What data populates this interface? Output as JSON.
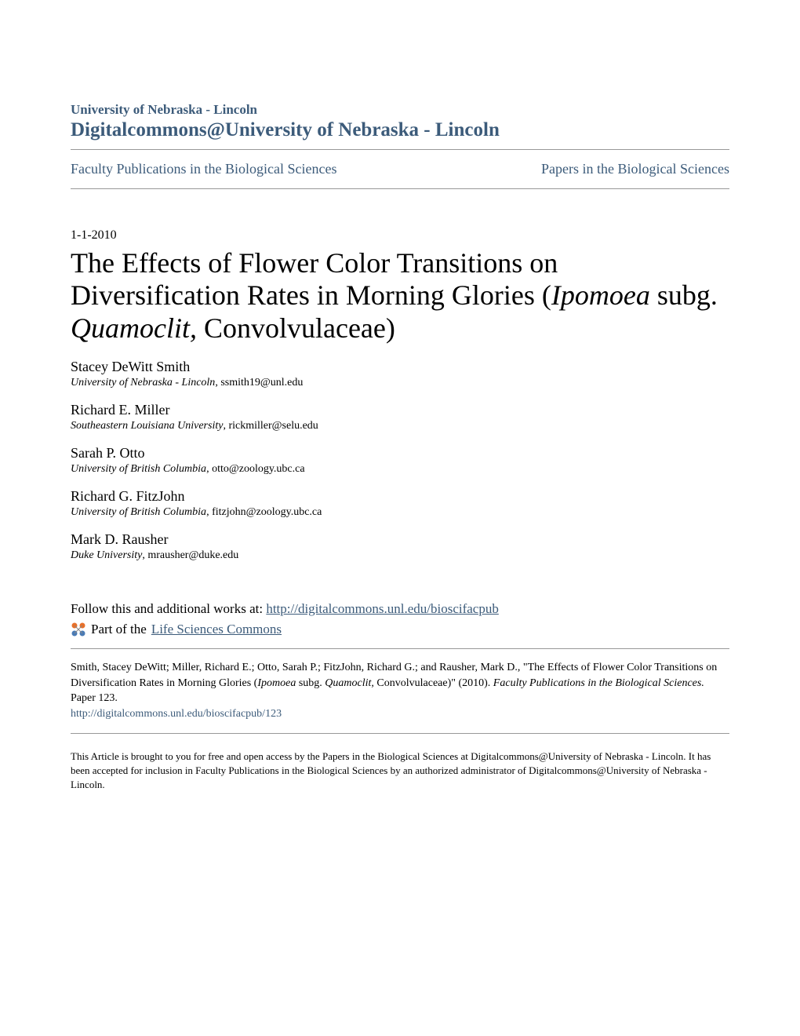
{
  "header": {
    "institution": "University of Nebraska - Lincoln",
    "repository": "Digitalcommons@University of Nebraska - Lincoln"
  },
  "nav": {
    "left": "Faculty Publications in the Biological Sciences",
    "right": "Papers in the Biological Sciences"
  },
  "date": "1-1-2010",
  "title": {
    "part1": "The Effects of Flower Color Transitions on Diversification Rates in Morning Glories (",
    "italic1": "Ipomoea",
    "part2": " subg. ",
    "italic2": "Quamoclit,",
    "part3": " Convolvulaceae)"
  },
  "authors": [
    {
      "name": "Stacey DeWitt Smith",
      "affiliation": "University of Nebraska - Lincoln",
      "email": ", ssmith19@unl.edu"
    },
    {
      "name": "Richard E. Miller",
      "affiliation": "Southeastern Louisiana University",
      "email": ", rickmiller@selu.edu"
    },
    {
      "name": "Sarah P. Otto",
      "affiliation": "University of British Columbia",
      "email": ", otto@zoology.ubc.ca"
    },
    {
      "name": "Richard G. FitzJohn",
      "affiliation": "University of British Columbia",
      "email": ", fitzjohn@zoology.ubc.ca"
    },
    {
      "name": "Mark D. Rausher",
      "affiliation": "Duke University",
      "email": ", mrausher@duke.edu"
    }
  ],
  "follow": {
    "prefix": "Follow this and additional works at: ",
    "url": "http://digitalcommons.unl.edu/bioscifacpub",
    "part_of_prefix": " Part of the ",
    "commons_link": "Life Sciences Commons"
  },
  "citation": {
    "authors_text": "Smith, Stacey DeWitt; Miller, Richard E.; Otto, Sarah P.; FitzJohn, Richard G.; and Rausher, Mark D., \"The Effects of Flower Color Transitions on Diversification Rates in Morning Glories (",
    "italic1": "Ipomoea",
    "mid1": " subg. ",
    "italic2": "Quamoclit,",
    "mid2": " Convolvulaceae)\" (2010). ",
    "pub_italic": "Faculty Publications in the Biological Sciences.",
    "paper_num": " Paper 123.",
    "url": "http://digitalcommons.unl.edu/bioscifacpub/123"
  },
  "footer": "This Article is brought to you for free and open access by the Papers in the Biological Sciences at Digitalcommons@University of Nebraska - Lincoln. It has been accepted for inclusion in Faculty Publications in the Biological Sciences by an authorized administrator of Digitalcommons@University of Nebraska - Lincoln.",
  "colors": {
    "link": "#3c5b7a",
    "text": "#000000",
    "border": "#999999",
    "icon_orange": "#e8702a",
    "icon_blue": "#4a7bb5"
  }
}
